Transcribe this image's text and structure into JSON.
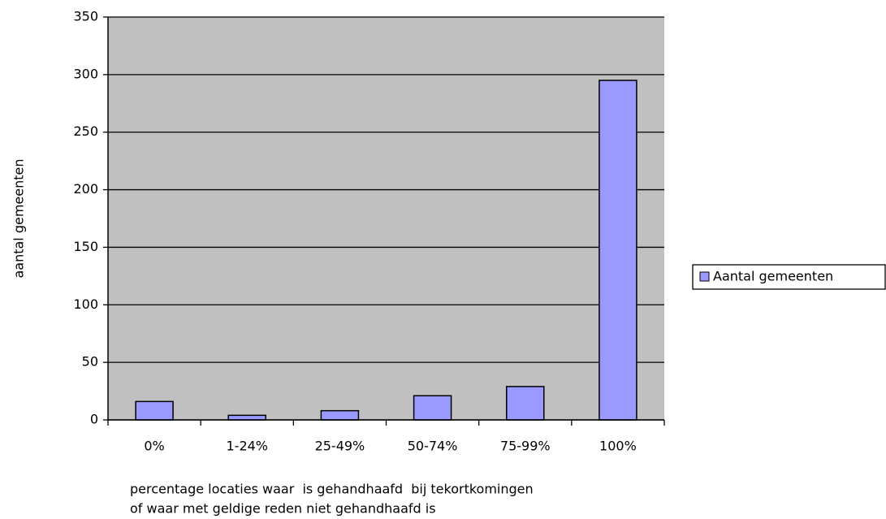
{
  "chart_data": {
    "type": "bar",
    "xlabel": [
      "percentage locaties waar  is gehandhaafd  bij tekortkomingen",
      "of waar met geldige reden niet gehandhaafd is"
    ],
    "ylabel": "aantal gemeenten",
    "categories": [
      "0%",
      "1-24%",
      "25-49%",
      "50-74%",
      "75-99%",
      "100%"
    ],
    "series": [
      {
        "name": "Aantal gemeenten",
        "color": "#9999ff",
        "values": [
          16,
          4,
          8,
          21,
          29,
          295
        ]
      }
    ],
    "ylim": [
      0,
      350
    ],
    "yticks": [
      0,
      50,
      100,
      150,
      200,
      250,
      300,
      350
    ],
    "grid": true,
    "legend": "right",
    "plot_background": "#c0c0c0"
  }
}
